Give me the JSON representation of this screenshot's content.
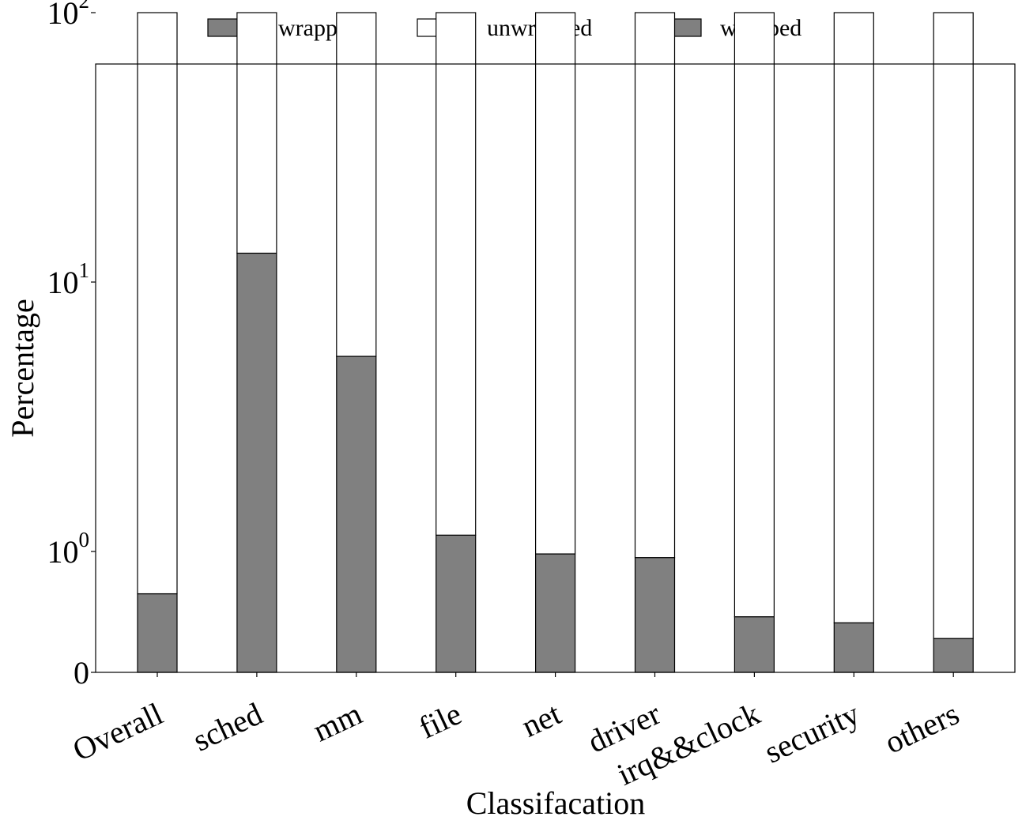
{
  "chart_data": {
    "type": "bar",
    "stacked": true,
    "xlabel": "Classifacation",
    "ylabel": "Percentage",
    "yscale": "symlog",
    "ylim": [
      0,
      100
    ],
    "yticks": [
      {
        "value": 0,
        "base": "0",
        "exp": ""
      },
      {
        "value": 1,
        "base": "10",
        "exp": "0"
      },
      {
        "value": 10,
        "base": "10",
        "exp": "1"
      },
      {
        "value": 100,
        "base": "10",
        "exp": "2"
      }
    ],
    "categories": [
      "Overall",
      "sched",
      "mm",
      "file",
      "net",
      "driver",
      "irq&&clock",
      "security",
      "others"
    ],
    "series": [
      {
        "name": "wrapped",
        "color": "#808080",
        "values": [
          0.65,
          12.8,
          5.3,
          1.15,
          0.98,
          0.95,
          0.46,
          0.41,
          0.28
        ]
      },
      {
        "name": "unwrapped",
        "color": "#ffffff",
        "values": [
          99.35,
          87.2,
          94.7,
          98.85,
          99.02,
          99.05,
          99.54,
          99.59,
          99.72
        ]
      }
    ],
    "legend": {
      "position": "top-center",
      "entries": [
        {
          "label": "wrapped",
          "color": "#808080"
        },
        {
          "label": "unwrapped",
          "color": "#ffffff"
        },
        {
          "label": "wrapped",
          "color": "#808080"
        }
      ]
    },
    "grid": false
  }
}
